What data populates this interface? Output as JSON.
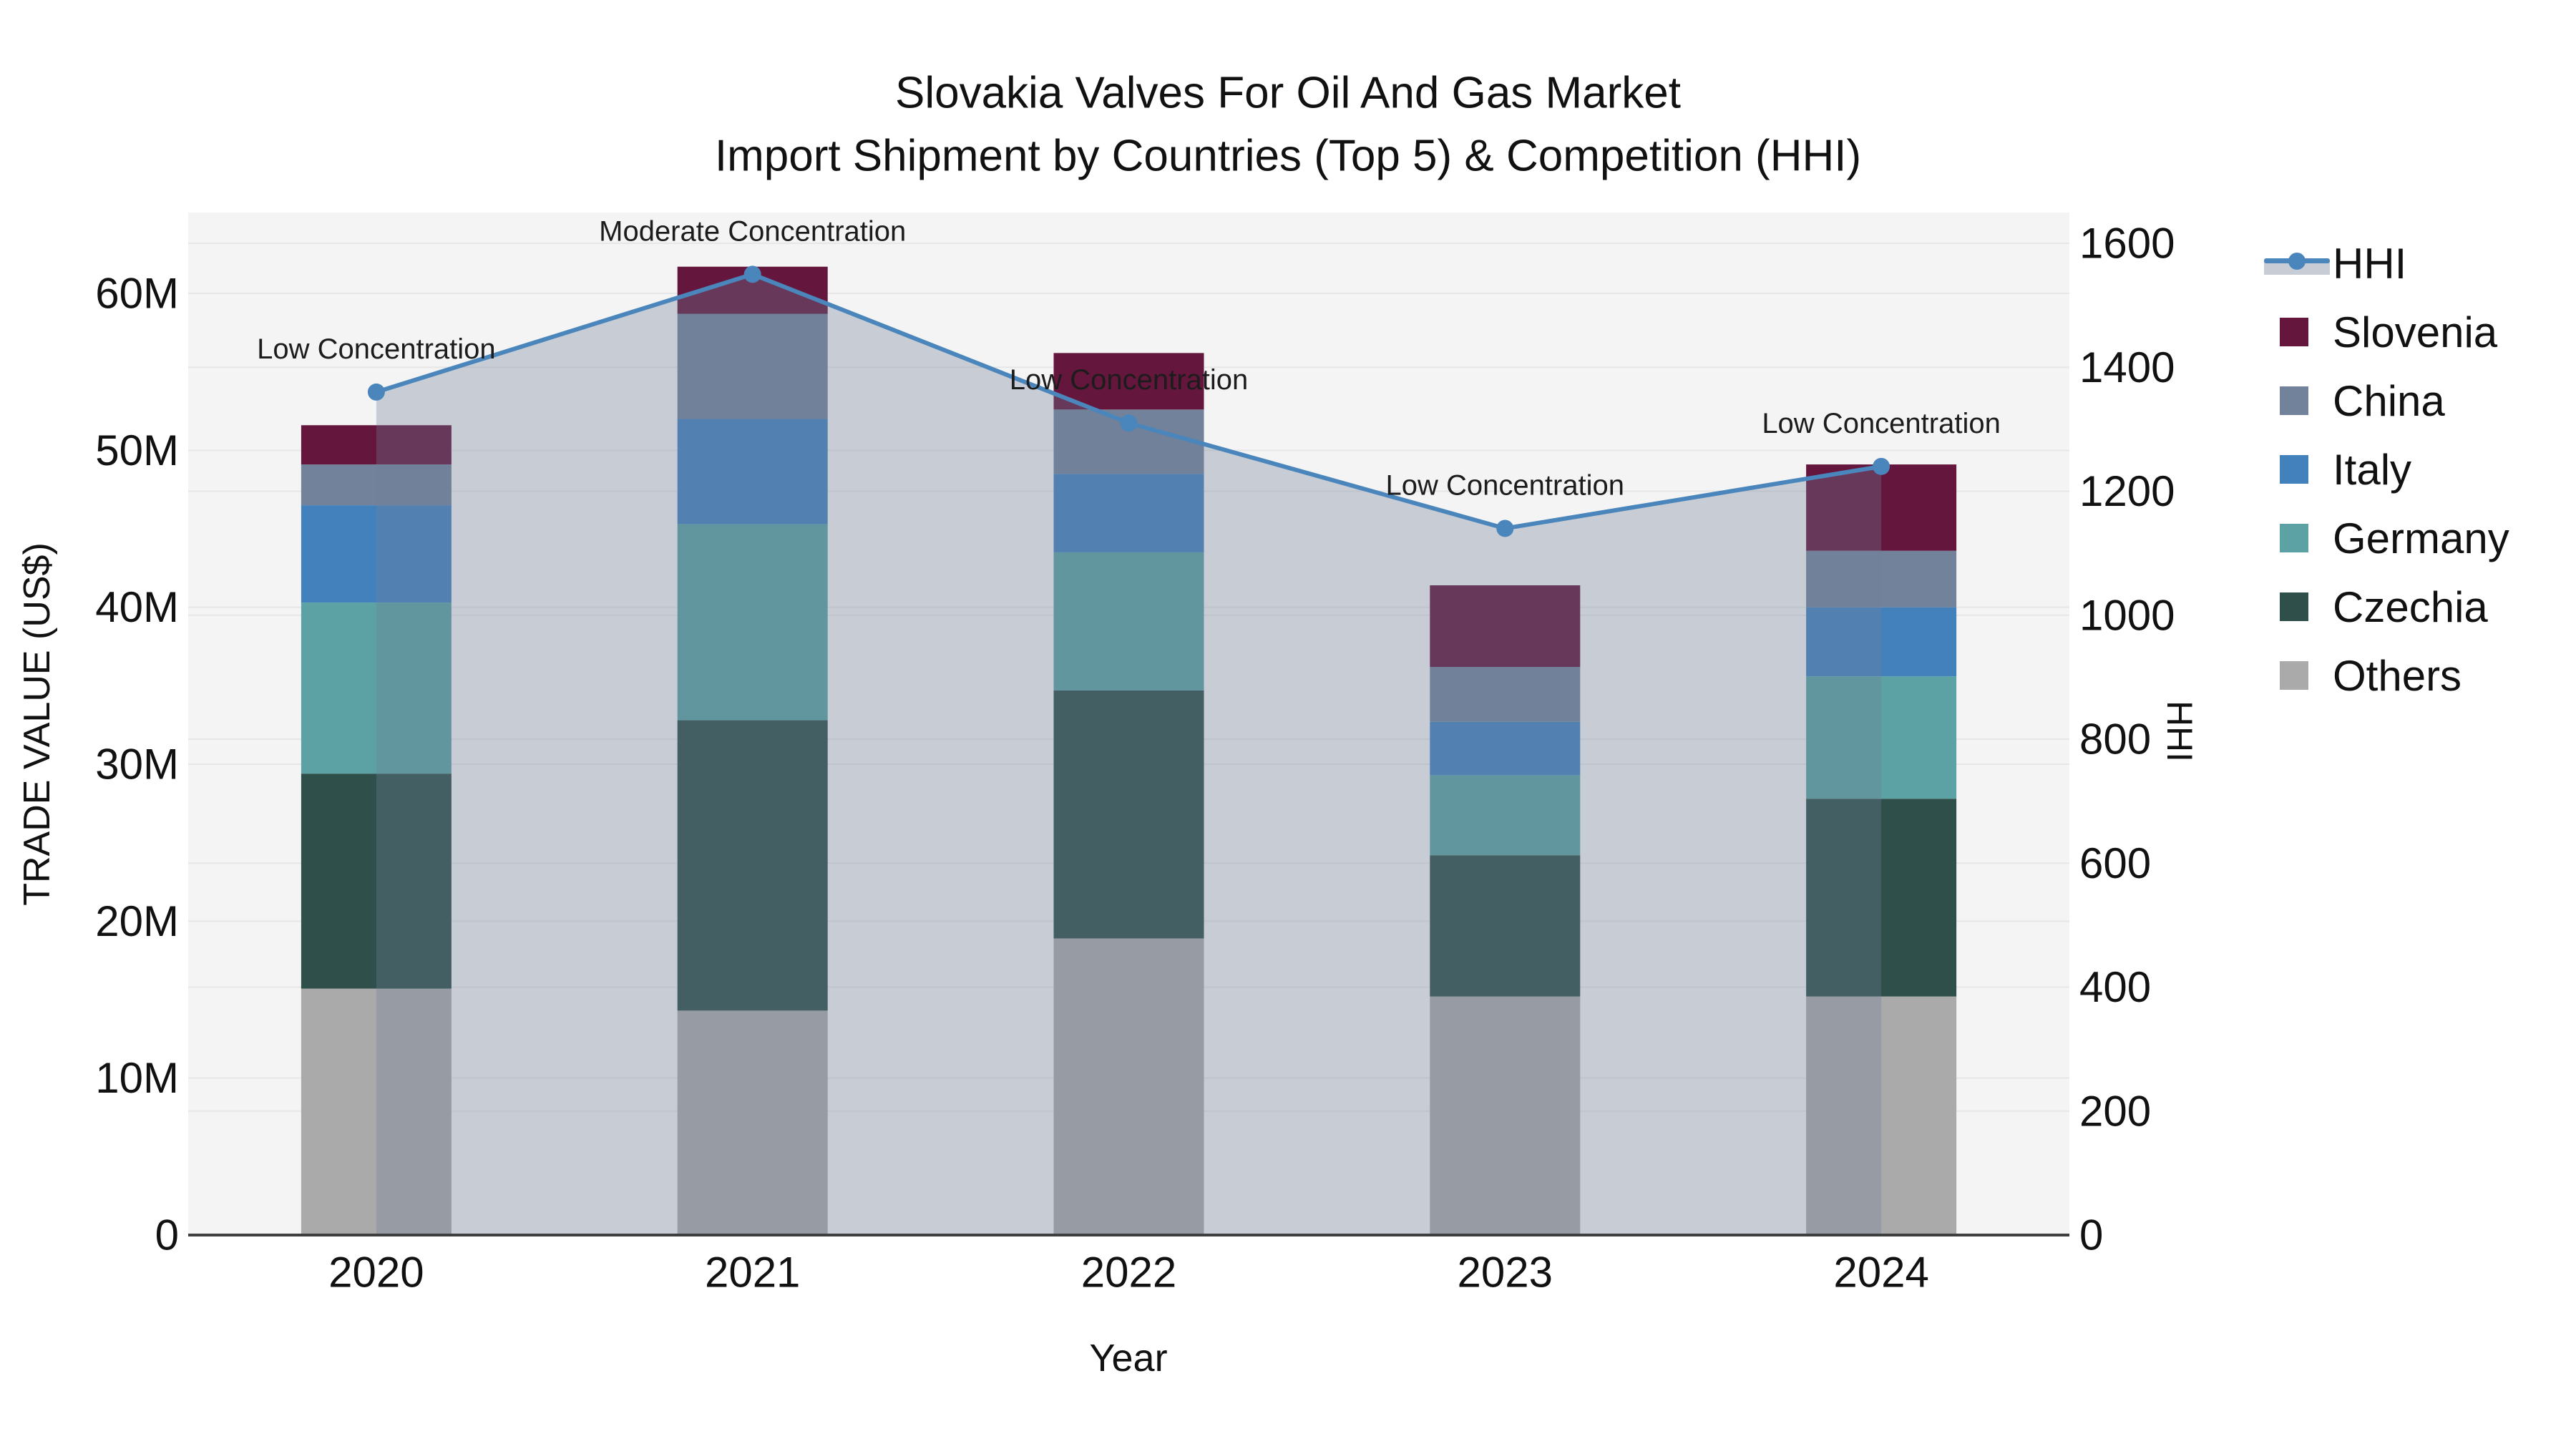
{
  "title": {
    "line1": "Slovakia Valves For Oil And Gas Market",
    "line2": "Import Shipment by Countries (Top 5) & Competition (HHI)"
  },
  "chart_data": {
    "type": "combo: stacked bar (trade value) + line with area fill (HHI)",
    "categories": [
      "2020",
      "2021",
      "2022",
      "2023",
      "2024"
    ],
    "xlabel": "Year",
    "ylabel_left": "TRADE VALUE (US$)",
    "ylabel_right": "HHI",
    "y_left_unit": "million US$",
    "y_left_ticks": [
      0,
      10,
      20,
      30,
      40,
      50,
      60
    ],
    "y_left_tick_labels": [
      "0",
      "10M",
      "20M",
      "30M",
      "40M",
      "50M",
      "60M"
    ],
    "y_left_range": [
      0,
      65.2
    ],
    "y_right_ticks": [
      0,
      200,
      400,
      600,
      800,
      1000,
      1200,
      1400,
      1600
    ],
    "y_right_range": [
      0,
      1600
    ],
    "grid": true,
    "legend_position": "right",
    "stack_note": "bars stacked bottom-to-top in reverse of series order (Others at bottom, Slovenia on top)",
    "series": [
      {
        "name": "Slovenia",
        "color": "#65163C",
        "values": [
          2.5,
          3.0,
          3.6,
          5.2,
          5.5
        ]
      },
      {
        "name": "China",
        "color": "#72829A",
        "values": [
          2.6,
          6.7,
          4.1,
          3.5,
          3.6
        ]
      },
      {
        "name": "Italy",
        "color": "#4381BC",
        "values": [
          6.2,
          6.7,
          5.0,
          3.4,
          4.4
        ]
      },
      {
        "name": "Germany",
        "color": "#5CA1A3",
        "values": [
          10.9,
          12.5,
          8.8,
          5.1,
          7.8
        ]
      },
      {
        "name": "Czechia",
        "color": "#2F4F4B",
        "values": [
          13.7,
          18.5,
          15.8,
          9.0,
          12.6
        ]
      },
      {
        "name": "Others",
        "color": "#AAAAAA",
        "values": [
          15.7,
          14.3,
          18.9,
          15.2,
          15.2
        ]
      }
    ],
    "bar_totals": [
      51.6,
      61.7,
      56.2,
      41.4,
      49.1
    ],
    "hhi": {
      "name": "HHI",
      "line_color": "#4A86BB",
      "area_fill_color": "rgba(111,127,151,0.33)",
      "values": [
        1360,
        1550,
        1310,
        1140,
        1240
      ],
      "annotations": [
        "Low Concentration",
        "Moderate Concentration",
        "Low Concentration",
        "Low Concentration",
        "Low Concentration"
      ]
    }
  },
  "colors": {
    "plot_background": "#F4F4F4",
    "gridline": "#E6E6E6",
    "axis_baseline": "#3F3F3F",
    "text": "#111111",
    "annotation_text": "#1C1C1C",
    "legend_hhi_band": "#C8CDD5"
  }
}
